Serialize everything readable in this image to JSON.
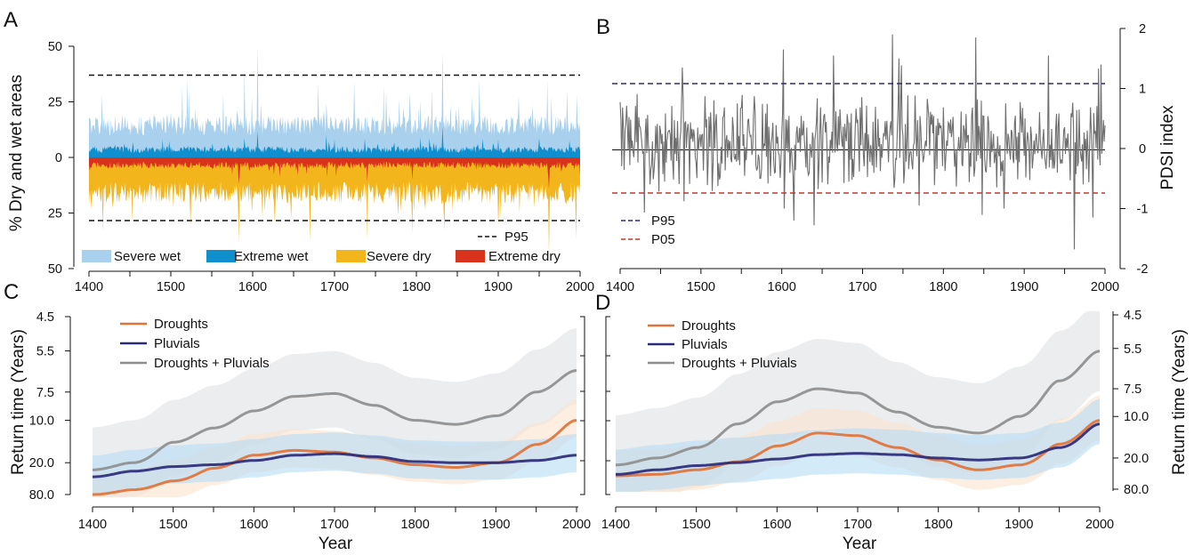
{
  "chart_data": [
    {
      "panel": "A",
      "type": "area",
      "xlabel": "",
      "ylabel": "% Dry and wet areas",
      "xlim": [
        1400,
        2000
      ],
      "ylim": [
        -50,
        50
      ],
      "x_ticks": [
        1400,
        1500,
        1600,
        1700,
        1800,
        1900,
        2000
      ],
      "y_ticks": [
        {
          "value": 50,
          "label": "50"
        },
        {
          "value": 25,
          "label": "25"
        },
        {
          "value": 0,
          "label": "0"
        },
        {
          "value": -25,
          "label": "25"
        },
        {
          "value": -50,
          "label": "50"
        }
      ],
      "reference_lines": [
        {
          "name": "P95",
          "upper": 37,
          "lower": -29
        }
      ],
      "series": [
        {
          "name": "Severe wet",
          "color": "#a9d0ec",
          "direction": "up",
          "base": 10,
          "spread": 9,
          "max": 50,
          "peaks": [
            [
              1606,
              50
            ],
            [
              1520,
              36
            ],
            [
              1590,
              40
            ],
            [
              1680,
              33
            ],
            [
              1724,
              34
            ],
            [
              1832,
              48
            ],
            [
              1760,
              32
            ],
            [
              1877,
              35
            ],
            [
              1960,
              35
            ],
            [
              1984,
              30
            ]
          ]
        },
        {
          "name": "Extreme wet",
          "color": "#0f8fcd",
          "direction": "up",
          "base": 2,
          "spread": 3,
          "max": 14,
          "peaks": [
            [
              1606,
              12
            ],
            [
              1690,
              10
            ],
            [
              1805,
              9
            ],
            [
              1832,
              14
            ],
            [
              1900,
              8
            ]
          ]
        },
        {
          "name": "Severe dry",
          "color": "#f2b51c",
          "direction": "down",
          "base": 11,
          "spread": 10,
          "max": 44,
          "peaks": [
            [
              1453,
              29
            ],
            [
              1583,
              38
            ],
            [
              1670,
              38
            ],
            [
              1740,
              37
            ],
            [
              1795,
              34
            ],
            [
              1900,
              31
            ],
            [
              1962,
              44
            ],
            [
              1995,
              37
            ]
          ]
        },
        {
          "name": "Extreme dry",
          "color": "#d9331e",
          "direction": "down",
          "base": 2,
          "spread": 3,
          "max": 14,
          "peaks": [
            [
              1583,
              12
            ],
            [
              1740,
              11
            ],
            [
              1795,
              10
            ],
            [
              1962,
              14
            ]
          ]
        }
      ],
      "legend": [
        "Severe wet",
        "Extreme wet",
        "Severe dry",
        "Extreme dry",
        "P95"
      ],
      "legend_placement": "bottom"
    },
    {
      "panel": "B",
      "type": "line",
      "xlabel": "",
      "ylabel": "PDSI index",
      "xlim": [
        1400,
        2000
      ],
      "ylim": [
        -2,
        2
      ],
      "x_ticks": [
        1400,
        1500,
        1600,
        1700,
        1800,
        1900,
        2000
      ],
      "y_ticks": [
        -2,
        -1,
        0,
        1,
        2
      ],
      "reference_lines": [
        {
          "name": "P95",
          "value": 1.1,
          "color": "#2b2a7a"
        },
        {
          "name": "P05",
          "value": -0.72,
          "color": "#c0392b"
        }
      ],
      "series": [
        {
          "name": "PDSI",
          "color": "#6e6e6e",
          "spread": 0.5,
          "peaks": [
            [
              1602,
              1.65
            ],
            [
              1664,
              1.55
            ],
            [
              1745,
              1.5
            ],
            [
              1840,
              1.85
            ],
            [
              1930,
              1.55
            ],
            [
              1995,
              1.4
            ],
            [
              1477,
              1.35
            ],
            [
              1603,
              -1.0
            ],
            [
              1640,
              -1.28
            ],
            [
              1615,
              -1.2
            ],
            [
              1770,
              -0.95
            ],
            [
              1875,
              -1.0
            ],
            [
              1962,
              -1.68
            ],
            [
              1985,
              -1.15
            ]
          ]
        }
      ],
      "legend": [
        "P95",
        "P05"
      ],
      "legend_placement": "bottom-left"
    },
    {
      "panel": "C",
      "type": "line",
      "xlabel": "Year",
      "ylabel": "Return time (Years)",
      "xlim": [
        1400,
        2000
      ],
      "y_scale": "reciprocal",
      "y_ticks": [
        4.5,
        5.5,
        7.5,
        10.0,
        20.0,
        80.0
      ],
      "y_tick_labels": [
        "4.5",
        "5.5",
        "7.5",
        "10.0",
        "20.0",
        "80.0"
      ],
      "x_ticks": [
        1400,
        1500,
        1600,
        1700,
        1800,
        1900,
        2000
      ],
      "series": [
        {
          "name": "Droughts",
          "color": "#e0733a",
          "band_color": "#fbe3cf",
          "band": 0.025,
          "x": [
            1400,
            1450,
            1500,
            1550,
            1600,
            1650,
            1700,
            1750,
            1800,
            1850,
            1900,
            1950,
            2000
          ],
          "y": [
            80,
            55,
            35,
            23,
            17,
            15.5,
            16,
            18,
            21,
            22.5,
            20,
            14,
            10
          ]
        },
        {
          "name": "Pluvials",
          "color": "#2b2a7a",
          "band_color": "#b5dcf5",
          "band": 0.025,
          "x": [
            1400,
            1450,
            1500,
            1550,
            1600,
            1650,
            1700,
            1750,
            1800,
            1850,
            1900,
            1950,
            2000
          ],
          "y": [
            30,
            25,
            22,
            21,
            19,
            17,
            16.5,
            17.5,
            19.5,
            20,
            20,
            19,
            17
          ]
        },
        {
          "name": "Droughts + Pluvials",
          "color": "#8e8e8e",
          "band_color": "#e6e7e8",
          "band": 0.05,
          "x": [
            1400,
            1450,
            1500,
            1550,
            1600,
            1650,
            1700,
            1750,
            1800,
            1850,
            1900,
            1950,
            2000
          ],
          "y": [
            24,
            20,
            13.5,
            11,
            9,
            7.8,
            7.6,
            8.5,
            10,
            10.5,
            9.5,
            7.5,
            6.3
          ]
        }
      ],
      "legend": [
        "Droughts",
        "Pluvials",
        "Droughts + Pluvials"
      ],
      "legend_placement": "top-left"
    },
    {
      "panel": "D",
      "type": "line",
      "xlabel": "Year",
      "ylabel": "Return time (Years)",
      "xlim": [
        1400,
        2000
      ],
      "y_scale": "reciprocal",
      "y_ticks": [
        4.5,
        5.5,
        7.5,
        10.0,
        20.0,
        80.0
      ],
      "y_tick_labels": [
        "4.5",
        "5.5",
        "7.5",
        "10.0",
        "20.0",
        "80.0"
      ],
      "x_ticks": [
        1400,
        1500,
        1600,
        1700,
        1800,
        1900,
        2000
      ],
      "series": [
        {
          "name": "Droughts",
          "color": "#e0733a",
          "band_color": "#fbe3cf",
          "band": 0.03,
          "x": [
            1400,
            1450,
            1500,
            1550,
            1600,
            1650,
            1700,
            1750,
            1800,
            1850,
            1900,
            1950,
            2000
          ],
          "y": [
            35,
            33,
            28,
            22,
            15.5,
            12.5,
            13,
            16,
            21,
            28,
            24,
            15,
            10.5
          ]
        },
        {
          "name": "Pluvials",
          "color": "#2b2a7a",
          "band_color": "#b5dcf5",
          "band": 0.03,
          "x": [
            1400,
            1450,
            1500,
            1550,
            1600,
            1650,
            1700,
            1750,
            1800,
            1850,
            1900,
            1950,
            2000
          ],
          "y": [
            33,
            28,
            24.5,
            22.5,
            20.5,
            18.5,
            18,
            18.5,
            20,
            21,
            20,
            16,
            11
          ]
        },
        {
          "name": "Droughts + Pluvials",
          "color": "#8e8e8e",
          "band_color": "#e6e7e8",
          "band": 0.06,
          "x": [
            1400,
            1450,
            1500,
            1550,
            1600,
            1650,
            1700,
            1750,
            1800,
            1850,
            1900,
            1950,
            2000
          ],
          "y": [
            24,
            20,
            16,
            11,
            8.5,
            7.5,
            7.8,
            9.5,
            11.5,
            12.5,
            10,
            7,
            5.6
          ]
        }
      ],
      "legend": [
        "Droughts",
        "Pluvials",
        "Droughts + Pluvials"
      ],
      "legend_placement": "top-left"
    }
  ],
  "text": {
    "panel_a": "A",
    "panel_b": "B",
    "panel_c": "C",
    "panel_d": "D",
    "ylabel_a": "% Dry and wet areas",
    "ylabel_b": "PDSI index",
    "ylabel_c": "Return time (Years)",
    "ylabel_d": "Return time (Years)",
    "xlabel_c": "Year",
    "xlabel_d": "Year",
    "legend_a_p95": "P95",
    "legend_a_severe_wet": "Severe wet",
    "legend_a_extreme_wet": "Extreme wet",
    "legend_a_severe_dry": "Severe dry",
    "legend_a_extreme_dry": "Extreme dry",
    "legend_b_p95": "P95",
    "legend_b_p05": "P05",
    "legend_c_droughts": "Droughts",
    "legend_c_pluvials": "Pluvials",
    "legend_c_both": "Droughts + Pluvials",
    "legend_d_droughts": "Droughts",
    "legend_d_pluvials": "Pluvials",
    "legend_d_both": "Droughts + Pluvials"
  },
  "colors": {
    "severe_wet": "#a9d0ec",
    "extreme_wet": "#0f8fcd",
    "severe_dry": "#f2b51c",
    "extreme_dry": "#d9331e",
    "droughts": "#e0733a",
    "pluvials": "#2b2a7a",
    "both": "#8e8e8e",
    "p95_b": "#2b2a7a",
    "p05_b": "#c0392b"
  }
}
